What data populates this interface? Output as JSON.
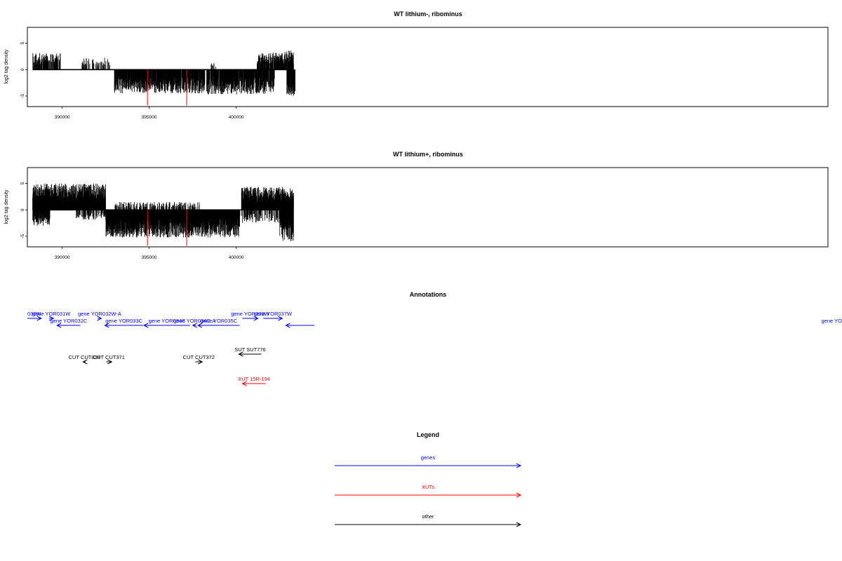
{
  "colors": {
    "gene": "#0000ff",
    "xut": "#ff0000",
    "other": "#000000",
    "highlight": "#ff0000"
  },
  "chart_data": [
    {
      "type": "bar",
      "title": "WT lithium-, ribominus",
      "ylabel": "log2 tag density",
      "xlim": [
        388000,
        434000
      ],
      "ylim": [
        -7,
        8
      ],
      "xticks": [
        390000,
        395000,
        400000
      ],
      "yticks": [
        5,
        0,
        -5
      ],
      "baseline": 0,
      "tracks": [
        {
          "strand": "plus",
          "segments": [
            {
              "x0": 388300,
              "x1": 389900,
              "amp": 2.5,
              "density": 0.6
            },
            {
              "x0": 391100,
              "x1": 392800,
              "amp": 1.8,
              "density": 0.25
            },
            {
              "x0": 398400,
              "x1": 398900,
              "amp": 1.0,
              "density": 0.2
            },
            {
              "x0": 401200,
              "x1": 402700,
              "amp": 2.6,
              "density": 0.7
            },
            {
              "x0": 402700,
              "x1": 403300,
              "amp": 3.0,
              "density": 0.8
            }
          ]
        },
        {
          "strand": "minus",
          "segments": [
            {
              "x0": 393000,
              "x1": 398200,
              "amp": 3.6,
              "density": 0.8
            },
            {
              "x0": 398300,
              "x1": 402200,
              "amp": 3.8,
              "density": 0.8
            },
            {
              "x0": 402900,
              "x1": 403400,
              "amp": 4.0,
              "density": 0.9
            }
          ]
        }
      ],
      "highlights": [
        {
          "x": 394900,
          "y": -6.8
        },
        {
          "x": 397150,
          "y": -6.8
        }
      ]
    },
    {
      "type": "bar",
      "title": "WT lithium+, ribominus",
      "ylabel": "log2 tag density",
      "xlim": [
        388000,
        434000
      ],
      "ylim": [
        -7,
        8
      ],
      "xticks": [
        390000,
        395000,
        400000
      ],
      "yticks": [
        5,
        0,
        -5
      ],
      "baseline": 0,
      "tracks": [
        {
          "strand": "plus",
          "segments": [
            {
              "x0": 388300,
              "x1": 392500,
              "amp": 4.0,
              "density": 1.0
            },
            {
              "x0": 393000,
              "x1": 397900,
              "amp": 1.2,
              "density": 0.3
            },
            {
              "x0": 400300,
              "x1": 403300,
              "amp": 3.5,
              "density": 1.0
            }
          ]
        },
        {
          "strand": "minus",
          "segments": [
            {
              "x0": 388300,
              "x1": 389300,
              "amp": 2.5,
              "density": 0.7
            },
            {
              "x0": 390800,
              "x1": 392500,
              "amp": 1.5,
              "density": 0.35
            },
            {
              "x0": 392500,
              "x1": 400200,
              "amp": 4.2,
              "density": 1.0
            },
            {
              "x0": 400200,
              "x1": 402500,
              "amp": 2.0,
              "density": 0.35
            },
            {
              "x0": 402500,
              "x1": 403300,
              "amp": 4.8,
              "density": 1.0
            }
          ]
        }
      ],
      "highlights": [
        {
          "x": 394900,
          "y": -6.8
        },
        {
          "x": 397150,
          "y": -6.8
        }
      ]
    }
  ],
  "annotations": {
    "title": "Annotations",
    "features": [
      {
        "label": "030W",
        "kind": "gene",
        "start": 388000,
        "end": 388800,
        "dir": "right",
        "row": 0
      },
      {
        "label": "gene YOR031W",
        "kind": "gene",
        "start": 389250,
        "end": 389500,
        "dir": "right",
        "row": 0
      },
      {
        "label": "gene YOR032C",
        "kind": "gene",
        "start": 389700,
        "end": 391050,
        "dir": "left",
        "row": 1
      },
      {
        "label": "gene YOR032W-A",
        "kind": "gene",
        "start": 392050,
        "end": 392250,
        "dir": "right",
        "row": 0
      },
      {
        "label": "gene YOR033C",
        "kind": "gene",
        "start": 392450,
        "end": 394650,
        "dir": "left",
        "row": 1
      },
      {
        "label": "gene YOR034C",
        "kind": "gene",
        "start": 394700,
        "end": 397350,
        "dir": "left",
        "row": 1
      },
      {
        "label": "gene YOR034C-A",
        "kind": "gene",
        "start": 397500,
        "end": 397700,
        "dir": "left",
        "row": 1
      },
      {
        "label": "gene YOR035C",
        "kind": "gene",
        "start": 397800,
        "end": 400200,
        "dir": "left",
        "row": 1
      },
      {
        "label": "gene YOR036W",
        "kind": "gene",
        "start": 400350,
        "end": 401250,
        "dir": "right",
        "row": 0
      },
      {
        "label": "gene YOR037W",
        "kind": "gene",
        "start": 401550,
        "end": 402650,
        "dir": "right",
        "row": 0
      },
      {
        "label": "gene YO",
        "kind": "gene",
        "start": 402850,
        "end": 404500,
        "dir": "left",
        "row": 1
      },
      {
        "label": "CUT CUT838",
        "kind": "other",
        "start": 391200,
        "end": 391350,
        "dir": "left",
        "row": 3
      },
      {
        "label": "CUT CUT371",
        "kind": "other",
        "start": 392530,
        "end": 392850,
        "dir": "right",
        "row": 3
      },
      {
        "label": "CUT CUT372",
        "kind": "other",
        "start": 397650,
        "end": 398050,
        "dir": "right",
        "row": 3
      },
      {
        "label": "SUT SUT776",
        "kind": "other",
        "start": 400150,
        "end": 401450,
        "dir": "left",
        "row": 2
      },
      {
        "label": "XUT 15R-194",
        "kind": "xut",
        "start": 400350,
        "end": 401700,
        "dir": "left",
        "row": 4
      }
    ]
  },
  "legend": {
    "title": "Legend",
    "items": [
      {
        "label": "genes",
        "kind": "gene"
      },
      {
        "label": "XUTs",
        "kind": "xut"
      },
      {
        "label": "other",
        "kind": "other"
      }
    ]
  }
}
